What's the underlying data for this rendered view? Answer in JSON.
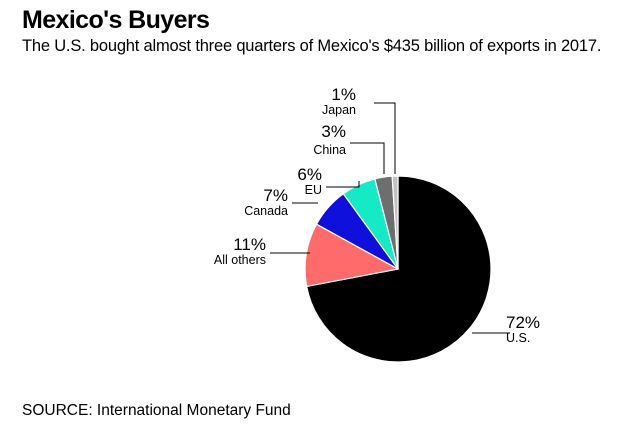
{
  "title": "Mexico's Buyers",
  "subtitle": "The U.S. bought almost three quarters of Mexico's $435 billion of exports in 2017.",
  "source": "SOURCE: International Monetary Fund",
  "chart_data": {
    "type": "pie",
    "slices": [
      {
        "label": "U.S.",
        "value": 72,
        "value_label": "72%",
        "color": "#000000"
      },
      {
        "label": "All others",
        "value": 11,
        "value_label": "11%",
        "color": "#ff6b6b"
      },
      {
        "label": "Canada",
        "value": 7,
        "value_label": "7%",
        "color": "#1010dd"
      },
      {
        "label": "EU",
        "value": 6,
        "value_label": "6%",
        "color": "#14ebc6"
      },
      {
        "label": "China",
        "value": 3,
        "value_label": "3%",
        "color": "#6e6e6e"
      },
      {
        "label": "Japan",
        "value": 1,
        "value_label": "1%",
        "color": "#c2c2c2"
      }
    ]
  }
}
